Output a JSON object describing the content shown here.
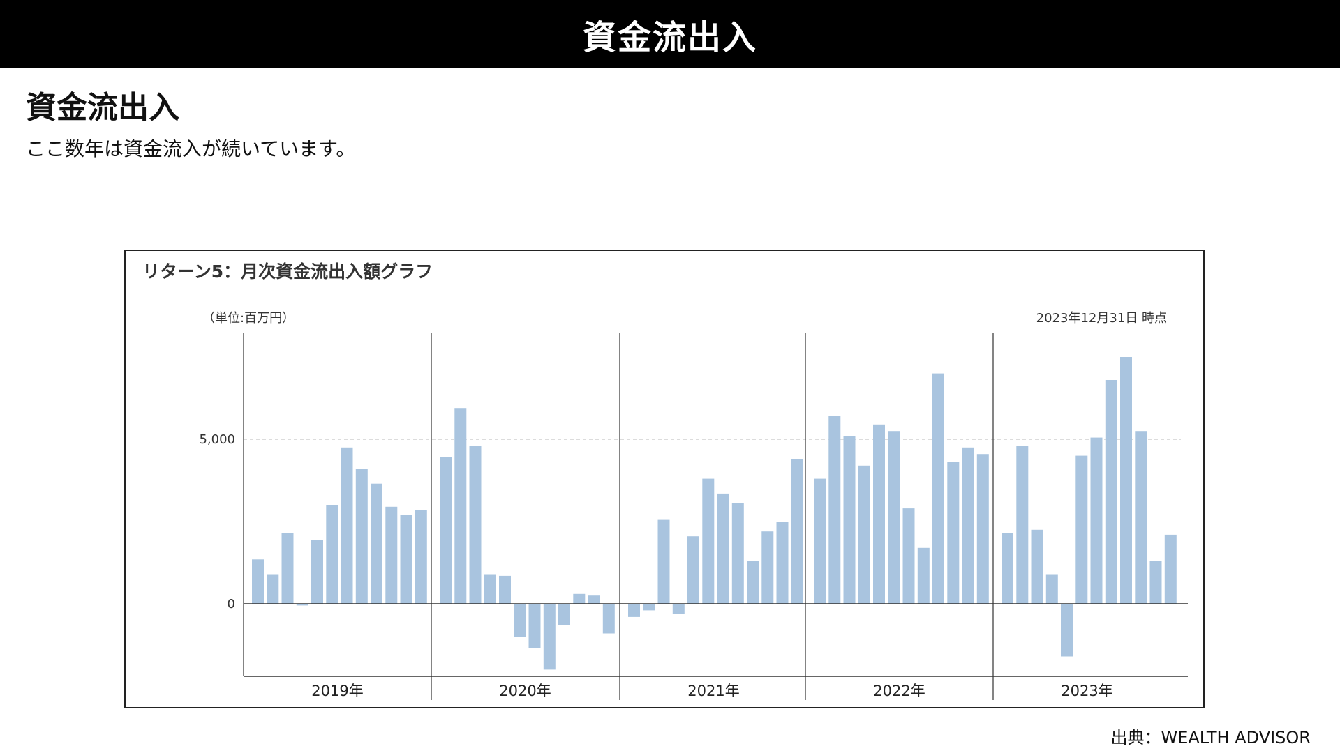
{
  "header": {
    "title": "資金流出入"
  },
  "main": {
    "heading": "資金流出入",
    "subtitle": "ここ数年は資金流入が続いています。",
    "source": "出典：WEALTH ADVISOR"
  },
  "chart": {
    "title": "リターン5：月次資金流出入額グラフ",
    "unit": "（単位:百万円）",
    "as_of": "2023年12月31日 時点"
  },
  "chart_data": {
    "type": "bar",
    "title": "リターン5：月次資金流出入額グラフ",
    "ylabel": "（単位:百万円）",
    "xlabel": "",
    "ylim": [
      -2200,
      8200
    ],
    "yticks": [
      0,
      5000
    ],
    "ytick_labels": [
      "0",
      "5,000"
    ],
    "grid": "dashed line at 5,000",
    "bar_color": "#a9c4df",
    "year_groups": [
      {
        "label": "2019年",
        "values": [
          1350,
          900,
          2150,
          -50,
          1950,
          3000,
          4750,
          4100,
          3650,
          2950,
          2700,
          2850
        ]
      },
      {
        "label": "2020年",
        "values": [
          4450,
          5950,
          4800,
          900,
          850,
          -1000,
          -1350,
          -2000,
          -650,
          300,
          250,
          -900
        ]
      },
      {
        "label": "2021年",
        "values": [
          -400,
          -200,
          2550,
          -300,
          2050,
          3800,
          3350,
          3050,
          1300,
          2200,
          2500,
          4400
        ]
      },
      {
        "label": "2022年",
        "values": [
          3800,
          5700,
          5100,
          4200,
          5450,
          5250,
          2900,
          1700,
          7000,
          4300,
          4750,
          4550
        ]
      },
      {
        "label": "2023年",
        "values": [
          2150,
          4800,
          2250,
          900,
          -1600,
          4500,
          5050,
          6800,
          7500,
          5250,
          1300,
          2100
        ]
      }
    ]
  }
}
